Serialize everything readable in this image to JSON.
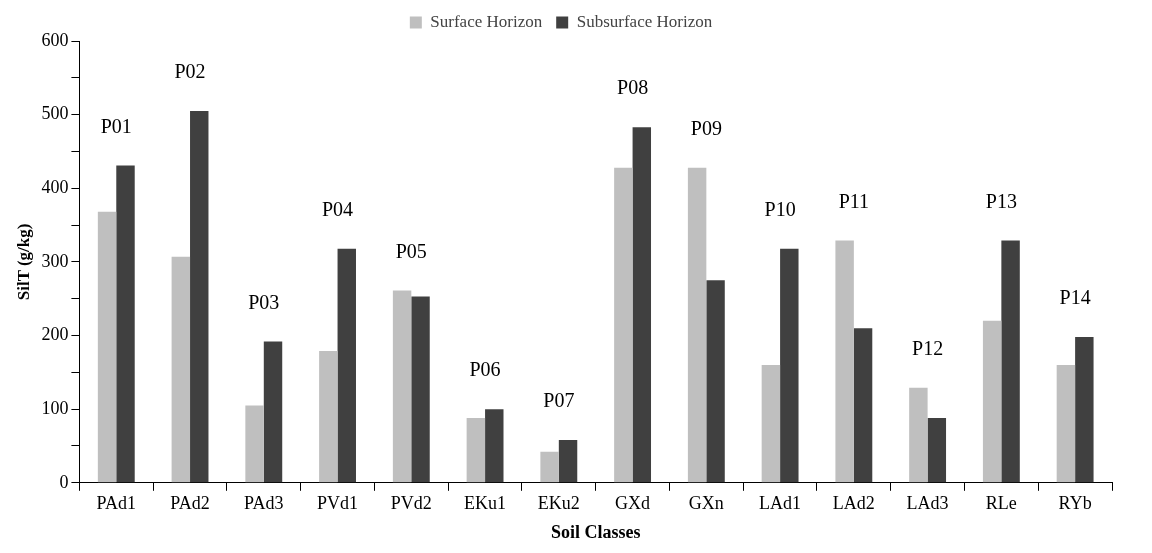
{
  "chart_data": {
    "type": "bar",
    "xlabel": "Soil Classes",
    "ylabel": "SilT (g/kg)",
    "categories": [
      "PAd1",
      "PAd2",
      "PAd3",
      "PVd1",
      "PVd2",
      "EKu1",
      "EKu2",
      "GXd",
      "GXn",
      "LAd1",
      "LAd2",
      "LAd3",
      "RLe",
      "RYb"
    ],
    "series": [
      {
        "name": "Surface Horizon",
        "color": "#bfbfbf",
        "values": [
          368,
          307,
          105,
          179,
          261,
          88,
          42,
          428,
          428,
          160,
          329,
          129,
          220,
          160
        ]
      },
      {
        "name": "Subsurface Horizon",
        "color": "#404040",
        "values": [
          431,
          505,
          192,
          318,
          253,
          100,
          58,
          483,
          275,
          318,
          210,
          88,
          329,
          198
        ]
      }
    ],
    "ylim": [
      0,
      600
    ],
    "yticks": [
      0,
      {
        "value": 50,
        "label": null
      },
      100,
      {
        "value": 150,
        "label": null
      },
      200,
      {
        "value": 250,
        "label": null
      },
      300,
      {
        "value": 350,
        "label": null
      },
      400,
      {
        "value": 450,
        "label": null
      },
      500,
      {
        "value": 550,
        "label": null
      },
      600
    ],
    "grid": false,
    "legend": "top",
    "annotations": [
      "P01",
      "P02",
      "P03",
      "P04",
      "P05",
      "P06",
      "P07",
      "P08",
      "P09",
      "P10",
      "P11",
      "P12",
      "P13",
      "P14"
    ]
  }
}
